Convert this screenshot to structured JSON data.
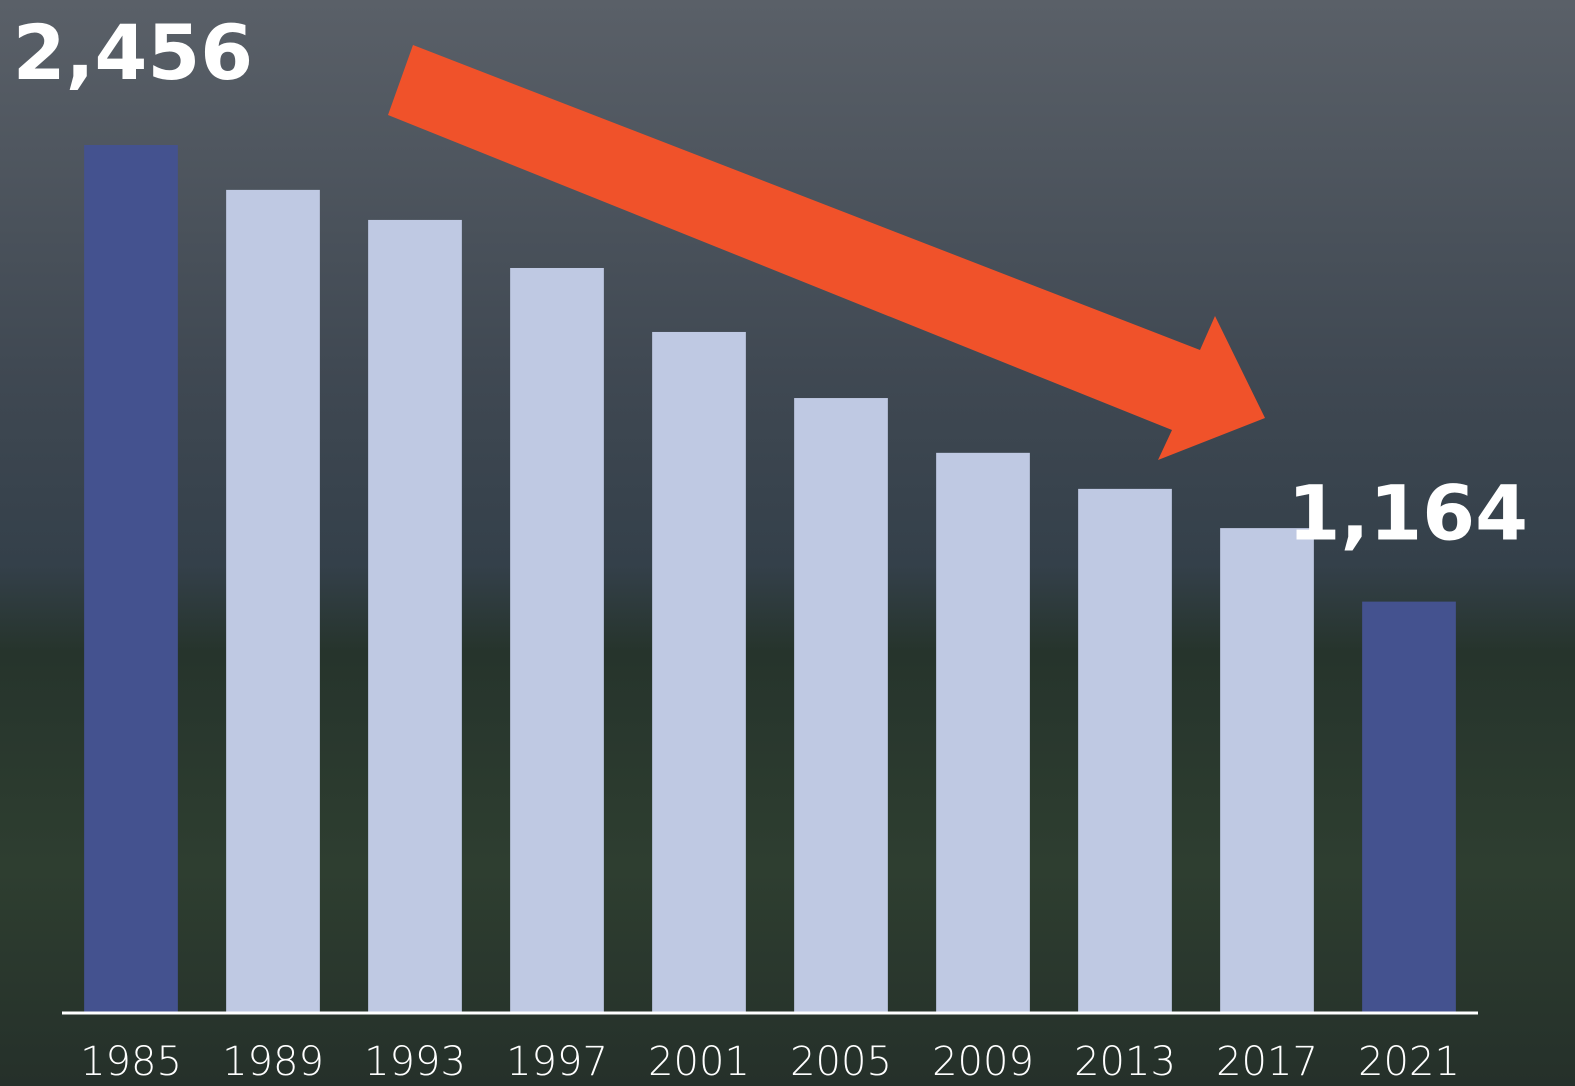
{
  "chart_data": {
    "type": "bar",
    "categories": [
      "1985",
      "1989",
      "1993",
      "1997",
      "2001",
      "2005",
      "2009",
      "2013",
      "2017",
      "2021"
    ],
    "values": [
      2456,
      2329,
      2244,
      2108,
      1927,
      1740,
      1585,
      1483,
      1372,
      1164
    ],
    "value_labels": [
      "2,456",
      null,
      null,
      null,
      null,
      null,
      null,
      null,
      null,
      "1,164"
    ],
    "colors": [
      "#44528f",
      "#bfc9e3",
      "#bfc9e3",
      "#bfc9e3",
      "#bfc9e3",
      "#bfc9e3",
      "#bfc9e3",
      "#bfc9e3",
      "#bfc9e3",
      "#44528f"
    ],
    "ylim": [
      0,
      2456
    ]
  }
}
